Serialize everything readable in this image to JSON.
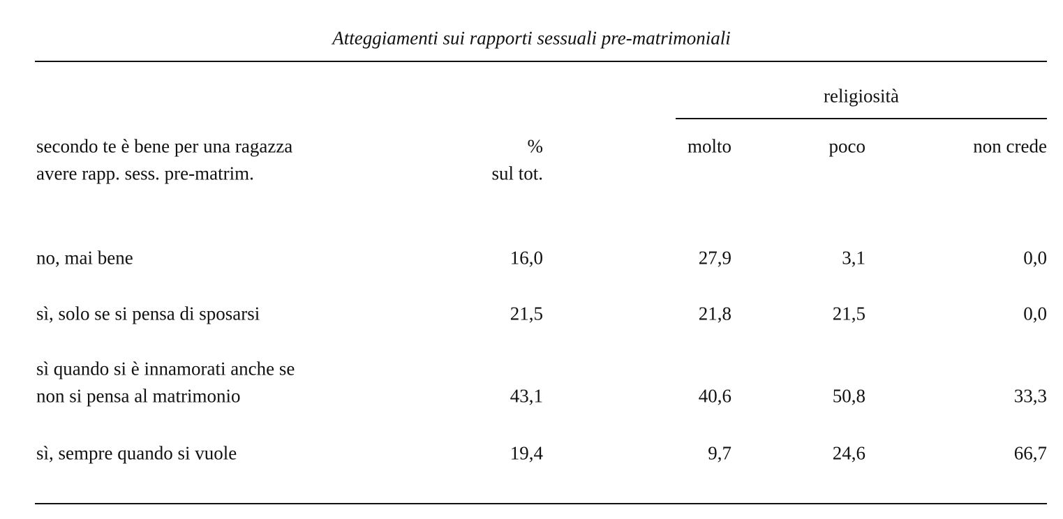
{
  "title": "Atteggiamenti sui rapporti sessuali pre-matrimoniali",
  "header": {
    "group": "religiosità",
    "stub": [
      "secondo te è bene per una ragazza",
      "avere rapp. sess. pre-matrim."
    ],
    "total": [
      "%",
      "sul tot."
    ],
    "columns": [
      "molto",
      "poco",
      "non crede"
    ]
  },
  "rows": [
    {
      "label": [
        "no, mai bene"
      ],
      "total": "16,0",
      "values": [
        "27,9",
        "3,1",
        "0,0"
      ]
    },
    {
      "label": [
        "sì, solo se si pensa di sposarsi"
      ],
      "total": "21,5",
      "values": [
        "21,8",
        "21,5",
        "0,0"
      ]
    },
    {
      "label": [
        "sì quando si è innamorati anche se",
        "non si pensa al matrimonio"
      ],
      "total": "43,1",
      "values": [
        "40,6",
        "50,8",
        "33,3"
      ]
    },
    {
      "label": [
        "sì, sempre quando si vuole"
      ],
      "total": "19,4",
      "values": [
        "9,7",
        "24,6",
        "66,7"
      ]
    }
  ]
}
